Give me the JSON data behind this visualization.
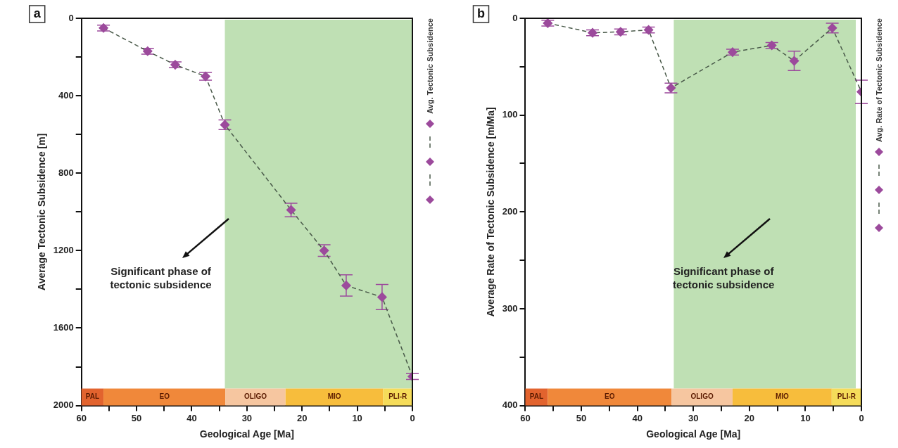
{
  "chart_data": [
    {
      "type": "line",
      "title": "a",
      "xlabel": "Geological Age [Ma]",
      "ylabel": "Average Tectonic Subsidence [m]",
      "x": [
        56,
        48,
        43,
        37.5,
        34,
        22,
        16,
        12,
        5.5,
        0
      ],
      "series": [
        {
          "name": "Avg. Tectonic Subsidence",
          "color": "#9c4a9c",
          "values": [
            50,
            170,
            240,
            300,
            550,
            990,
            1200,
            1380,
            1440,
            1850
          ],
          "errors": [
            15,
            15,
            15,
            20,
            25,
            35,
            30,
            55,
            65,
            15
          ]
        }
      ],
      "xlim": [
        60,
        0
      ],
      "xticks": [
        60,
        {
          "value": 55,
          "label": null
        },
        50,
        {
          "value": 45,
          "label": null
        },
        40,
        {
          "value": 35,
          "label": null
        },
        30,
        {
          "value": 25,
          "label": null
        },
        20,
        {
          "value": 15,
          "label": null
        },
        10,
        {
          "value": 5,
          "label": null
        },
        0
      ],
      "ylim": [
        2000,
        0
      ],
      "yticks": [
        0,
        {
          "value": 200,
          "label": null
        },
        400,
        {
          "value": 600,
          "label": null
        },
        800,
        {
          "value": 1000,
          "label": null
        },
        1200,
        {
          "value": 1400,
          "label": null
        },
        1600,
        {
          "value": 1800,
          "label": null
        },
        2000
      ],
      "grid": false,
      "legend": "right",
      "marker": "diamond",
      "line_style": "dashed",
      "bands": [
        {
          "axis": "x",
          "from": 34,
          "to": 0,
          "color": "#bfe0b4"
        },
        {
          "axis": "x",
          "from": 60,
          "to": 56,
          "label": "PAL",
          "color": "#e2632e"
        },
        {
          "axis": "x",
          "from": 56,
          "to": 33.9,
          "label": "EO",
          "color": "#f0883a"
        },
        {
          "axis": "x",
          "from": 33.9,
          "to": 23,
          "label": "OLIGO",
          "color": "#f6c6a0"
        },
        {
          "axis": "x",
          "from": 23,
          "to": 5.3,
          "label": "MIO",
          "color": "#f7bd3c"
        },
        {
          "axis": "x",
          "from": 5.3,
          "to": 0,
          "label": "PLI-R",
          "color": "#f5dc5a"
        }
      ],
      "annotations": [
        "Significant phase of tectonic subsidence"
      ]
    },
    {
      "type": "line",
      "title": "b",
      "xlabel": "Geological Age [Ma]",
      "ylabel": "Average Rate of Tectonic Subsidence [m/Ma]",
      "x": [
        56,
        48,
        43,
        38,
        34,
        23,
        16,
        12,
        5.2,
        0
      ],
      "series": [
        {
          "name": "Avg. Rate of Tectonic Subsidence",
          "color": "#9c4a9c",
          "values": [
            5,
            15,
            14,
            12,
            72,
            35,
            28,
            44,
            10,
            76
          ],
          "errors": [
            3,
            3,
            3,
            3,
            5,
            3,
            3,
            10,
            5,
            12
          ]
        }
      ],
      "xlim": [
        60,
        0
      ],
      "xticks": [
        60,
        {
          "value": 55,
          "label": null
        },
        50,
        {
          "value": 45,
          "label": null
        },
        40,
        {
          "value": 35,
          "label": null
        },
        30,
        {
          "value": 25,
          "label": null
        },
        20,
        {
          "value": 15,
          "label": null
        },
        10,
        {
          "value": 5,
          "label": null
        },
        0
      ],
      "ylim": [
        400,
        0
      ],
      "yticks": [
        0,
        {
          "value": 50,
          "label": null
        },
        100,
        {
          "value": 150,
          "label": null
        },
        200,
        {
          "value": 250,
          "label": null
        },
        300,
        {
          "value": 350,
          "label": null
        },
        400
      ],
      "grid": false,
      "legend": "right",
      "marker": "diamond",
      "line_style": "dashed",
      "bands": [
        {
          "axis": "x",
          "from": 33.5,
          "to": 1,
          "color": "#bfe0b4"
        },
        {
          "axis": "x",
          "from": 60,
          "to": 56,
          "label": "PAL",
          "color": "#e2632e"
        },
        {
          "axis": "x",
          "from": 56,
          "to": 33.9,
          "label": "EO",
          "color": "#f0883a"
        },
        {
          "axis": "x",
          "from": 33.9,
          "to": 23,
          "label": "OLIGO",
          "color": "#f6c6a0"
        },
        {
          "axis": "x",
          "from": 23,
          "to": 5.3,
          "label": "MIO",
          "color": "#f7bd3c"
        },
        {
          "axis": "x",
          "from": 5.3,
          "to": 0,
          "label": "PLI-R",
          "color": "#f5dc5a"
        }
      ],
      "annotations": [
        "Significant phase of tectonic subsidence"
      ]
    }
  ]
}
